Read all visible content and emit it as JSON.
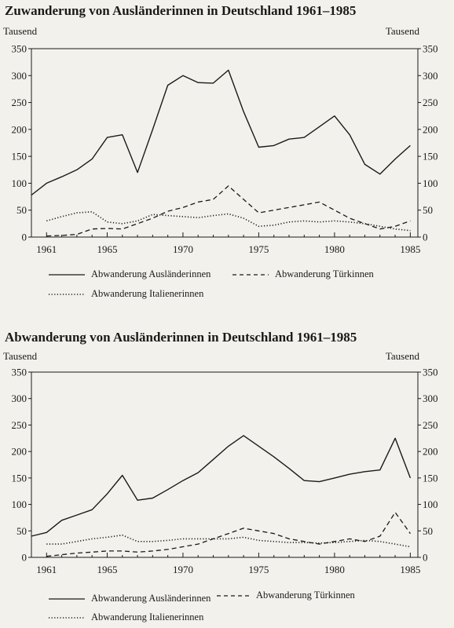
{
  "chart_data": [
    {
      "type": "line",
      "title": "Zuwanderung von Ausländerinnen in Deutschland 1961–1985",
      "y_unit_left": "Tausend",
      "y_unit_right": "Tausend",
      "ylim": [
        0,
        350
      ],
      "y_ticks": [
        0,
        50,
        100,
        150,
        200,
        250,
        300,
        350
      ],
      "xlim": [
        1960,
        1985.5
      ],
      "x_ticks": [
        1961,
        1965,
        1970,
        1975,
        1980,
        1985
      ],
      "grid": false,
      "series": [
        {
          "name": "Abwanderung Ausländerinnen",
          "style": "solid",
          "x": [
            1960,
            1961,
            1962,
            1963,
            1964,
            1965,
            1966,
            1967,
            1968,
            1969,
            1970,
            1971,
            1972,
            1973,
            1974,
            1975,
            1976,
            1977,
            1978,
            1979,
            1980,
            1981,
            1982,
            1983,
            1984,
            1985
          ],
          "y": [
            78,
            100,
            112,
            125,
            145,
            185,
            190,
            120,
            200,
            282,
            300,
            287,
            286,
            310,
            233,
            167,
            170,
            182,
            185,
            205,
            225,
            190,
            135,
            117,
            145,
            170
          ]
        },
        {
          "name": "Abwanderung Türkinnen",
          "style": "dashed",
          "x": [
            1961,
            1962,
            1963,
            1964,
            1965,
            1966,
            1967,
            1968,
            1969,
            1970,
            1971,
            1972,
            1973,
            1974,
            1975,
            1976,
            1977,
            1978,
            1979,
            1980,
            1981,
            1982,
            1983,
            1984,
            1985
          ],
          "y": [
            2,
            3,
            5,
            15,
            16,
            15,
            25,
            35,
            48,
            55,
            65,
            70,
            95,
            70,
            45,
            50,
            55,
            60,
            65,
            50,
            35,
            25,
            15,
            20,
            30
          ]
        },
        {
          "name": "Abwanderung Italienerinnen",
          "style": "dotted",
          "x": [
            1961,
            1962,
            1963,
            1964,
            1965,
            1966,
            1967,
            1968,
            1969,
            1970,
            1971,
            1972,
            1973,
            1974,
            1975,
            1976,
            1977,
            1978,
            1979,
            1980,
            1981,
            1982,
            1983,
            1984,
            1985
          ],
          "y": [
            30,
            38,
            45,
            47,
            28,
            25,
            30,
            42,
            40,
            38,
            36,
            40,
            43,
            35,
            20,
            22,
            28,
            30,
            28,
            30,
            28,
            25,
            20,
            15,
            12
          ]
        }
      ],
      "legend": [
        {
          "label": "Abwanderung Ausländerinnen",
          "style": "solid"
        },
        {
          "label": "Abwanderung Türkinnen",
          "style": "dashed"
        },
        {
          "label": "Abwanderung Italienerinnen",
          "style": "dotted"
        }
      ]
    },
    {
      "type": "line",
      "title": "Abwanderung von Ausländerinnen in Deutschland 1961–1985",
      "y_unit_left": "Tausend",
      "y_unit_right": "Tausend",
      "ylim": [
        0,
        350
      ],
      "y_ticks": [
        0,
        50,
        100,
        150,
        200,
        250,
        300,
        350
      ],
      "xlim": [
        1960,
        1985.5
      ],
      "x_ticks": [
        1961,
        1965,
        1970,
        1975,
        1980,
        1985
      ],
      "grid": false,
      "series": [
        {
          "name": "Abwanderung Ausländerinnen",
          "style": "solid",
          "x": [
            1960,
            1961,
            1962,
            1963,
            1964,
            1965,
            1966,
            1967,
            1968,
            1969,
            1970,
            1971,
            1972,
            1973,
            1974,
            1975,
            1976,
            1977,
            1978,
            1979,
            1980,
            1981,
            1982,
            1983,
            1984,
            1985
          ],
          "y": [
            40,
            47,
            70,
            80,
            90,
            120,
            155,
            108,
            112,
            128,
            145,
            160,
            185,
            210,
            230,
            210,
            190,
            168,
            145,
            143,
            150,
            157,
            162,
            165,
            225,
            150
          ]
        },
        {
          "name": "Abwanderung Türkinnen",
          "style": "dashed",
          "x": [
            1961,
            1962,
            1963,
            1964,
            1965,
            1966,
            1967,
            1968,
            1969,
            1970,
            1971,
            1972,
            1973,
            1974,
            1975,
            1976,
            1977,
            1978,
            1979,
            1980,
            1981,
            1982,
            1983,
            1984,
            1985
          ],
          "y": [
            2,
            5,
            8,
            10,
            12,
            12,
            10,
            12,
            15,
            20,
            25,
            35,
            45,
            55,
            50,
            45,
            35,
            30,
            25,
            30,
            35,
            30,
            40,
            85,
            45
          ]
        },
        {
          "name": "Abwanderung Italienerinnen",
          "style": "dotted",
          "x": [
            1961,
            1962,
            1963,
            1964,
            1965,
            1966,
            1967,
            1968,
            1969,
            1970,
            1971,
            1972,
            1973,
            1974,
            1975,
            1976,
            1977,
            1978,
            1979,
            1980,
            1981,
            1982,
            1983,
            1984,
            1985
          ],
          "y": [
            25,
            25,
            30,
            35,
            38,
            42,
            30,
            30,
            32,
            35,
            35,
            35,
            35,
            38,
            32,
            30,
            28,
            28,
            27,
            28,
            30,
            32,
            30,
            25,
            20
          ]
        }
      ],
      "legend": [
        {
          "label": "Abwanderung Ausländerinnen",
          "style": "solid"
        },
        {
          "label": "Abwanderung Türkinnen",
          "style": "dashed"
        },
        {
          "label": "Abwanderung Italienerinnen",
          "style": "dotted"
        }
      ]
    }
  ]
}
